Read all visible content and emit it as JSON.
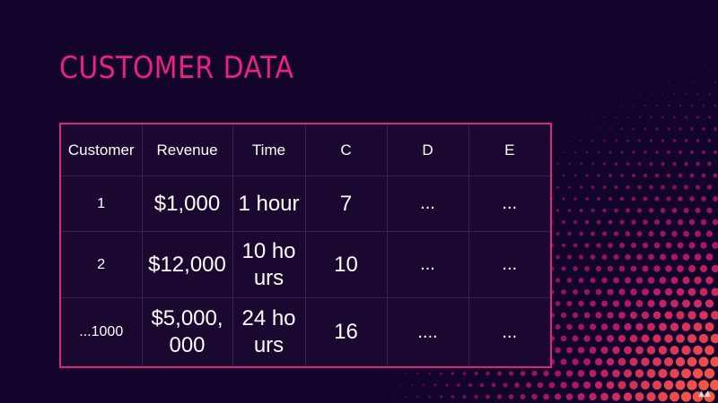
{
  "slide": {
    "title": "CUSTOMER DATA",
    "accent_color": "#e8237d",
    "background_color": "#12042a",
    "decoration": "halftone-dot-gradient-pink-to-orange"
  },
  "table": {
    "headers": [
      "Customer",
      "Revenue",
      "Time",
      "C",
      "D",
      "E"
    ],
    "rows": [
      [
        "1",
        "$1,000",
        "1 hour",
        "7",
        "...",
        "..."
      ],
      [
        "2",
        "$12,000",
        "10 hours",
        "10",
        "...",
        "..."
      ],
      [
        "...1000",
        "$5,000,000",
        "24 hours",
        "16",
        "....",
        "..."
      ]
    ]
  }
}
